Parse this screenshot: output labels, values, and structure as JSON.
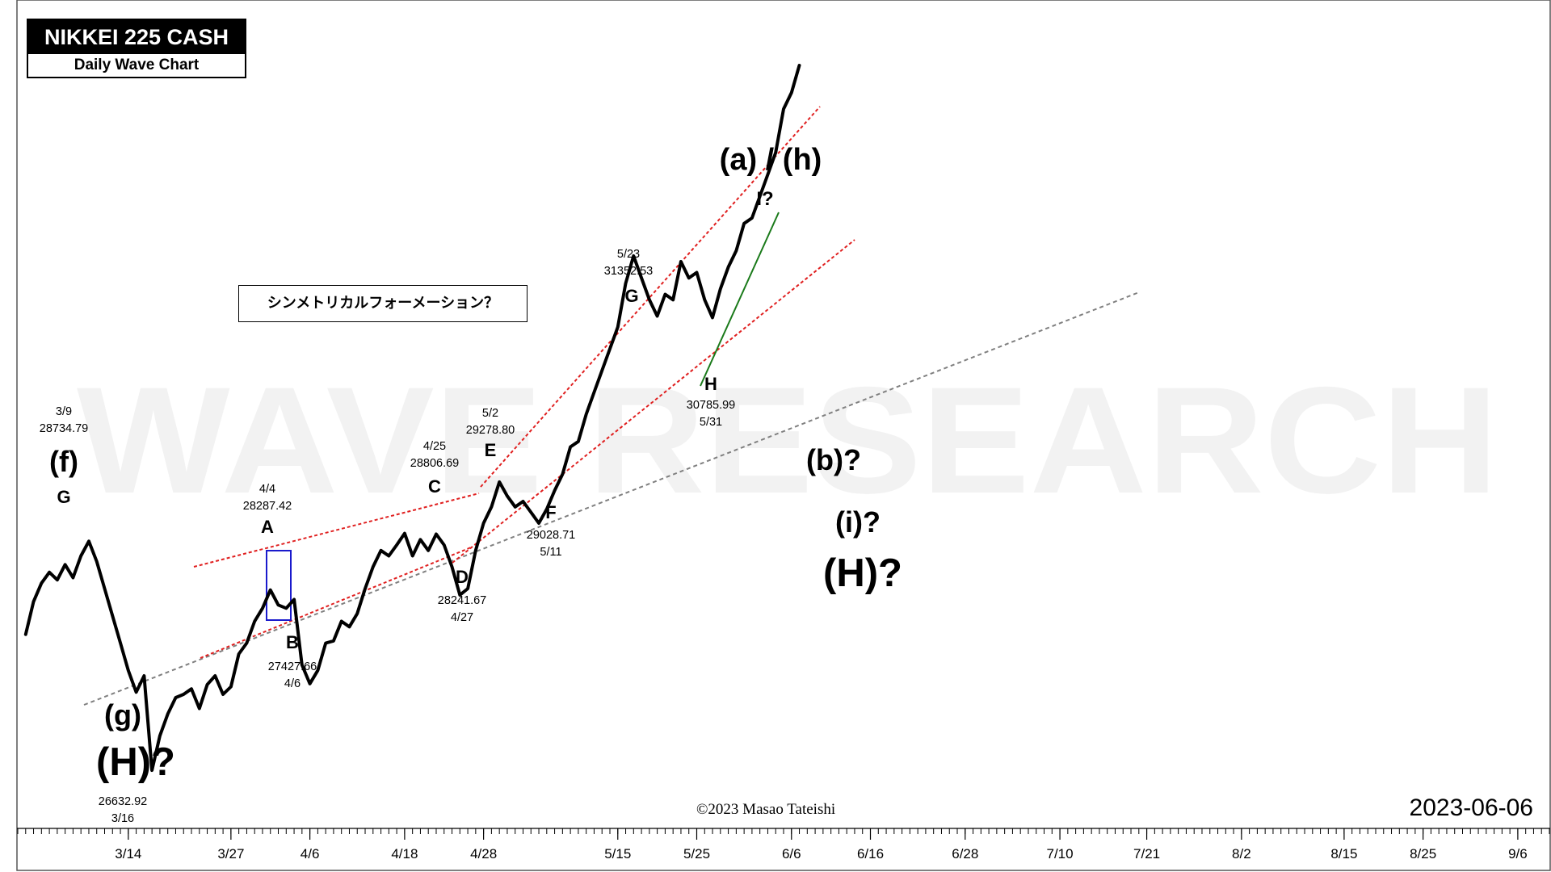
{
  "header": {
    "title": "NIKKEI 225 CASH",
    "subtitle": "Daily Wave Chart"
  },
  "note": "シンメトリカルフォーメーション？",
  "watermark": "WAVE RESEARCH",
  "copyright": "©2023 Masao Tateishi",
  "date_stamp": "2023-06-06",
  "colors": {
    "price_line": "#000000",
    "channel": "#e02020",
    "support": "#808080",
    "green_line": "#1a7a1a",
    "box": "#1a1acc",
    "watermark": "#f2f2f2"
  },
  "chart_data": {
    "type": "line",
    "x_tick_labels": [
      "3/14",
      "3/27",
      "4/6",
      "4/18",
      "4/28",
      "5/15",
      "5/25",
      "6/6",
      "6/16",
      "6/28",
      "7/10",
      "7/21",
      "8/2",
      "8/15",
      "8/25",
      "9/6"
    ],
    "x_tick_days": [
      14,
      27,
      37,
      49,
      59,
      76,
      86,
      98,
      108,
      120,
      132,
      143,
      155,
      168,
      178,
      190
    ],
    "series": [
      {
        "x": [
          1,
          2,
          3,
          4,
          5,
          6,
          7,
          8,
          9,
          10,
          11,
          12,
          13,
          14,
          15,
          16,
          17,
          18,
          19,
          20,
          21,
          22,
          23,
          24,
          25,
          26,
          27,
          28,
          29,
          30,
          31,
          32,
          33,
          34,
          35,
          36,
          37,
          38,
          39,
          40,
          41,
          42,
          43,
          44,
          45,
          46,
          47,
          48,
          49,
          50,
          51,
          52,
          53,
          54,
          55,
          56,
          57,
          58,
          59,
          60,
          61,
          62,
          63,
          64,
          65,
          66,
          67,
          68,
          69,
          70,
          71,
          72,
          73,
          74,
          75,
          76,
          77,
          78,
          79,
          80,
          81,
          82,
          83,
          84,
          85,
          86,
          87,
          88,
          89,
          90,
          91,
          92,
          93,
          94,
          95,
          96,
          97,
          98,
          99
        ],
        "y": [
          27880,
          28180,
          28350,
          28450,
          28380,
          28520,
          28400,
          28600,
          28734.79,
          28550,
          28300,
          28050,
          27800,
          27550,
          27350,
          27500,
          26632.92,
          26950,
          27150,
          27300,
          27330,
          27380,
          27200,
          27420,
          27500,
          27330,
          27400,
          27700,
          27800,
          28000,
          28120,
          28287.42,
          28150,
          28120,
          28200,
          27600,
          27427.66,
          27550,
          27800,
          27820,
          28000,
          27950,
          28070,
          28300,
          28500,
          28650,
          28600,
          28700,
          28806.69,
          28600,
          28750,
          28650,
          28800,
          28700,
          28500,
          28241.67,
          28300,
          28650,
          28900,
          29050,
          29278.8,
          29150,
          29050,
          29100,
          29000,
          28900,
          29028.71,
          29200,
          29350,
          29600,
          29650,
          29900,
          30100,
          30300,
          30500,
          30700,
          31100,
          31352.53,
          31150,
          30950,
          30800,
          31000,
          30950,
          31300,
          31150,
          31200,
          30950,
          30785.99,
          31050,
          31250,
          31400,
          31650,
          31700,
          31900,
          32100,
          32300,
          32700,
          32850,
          33100
        ]
      }
    ],
    "y_range": [
      26100,
      33700
    ],
    "x_range": [
      0,
      194
    ],
    "grid": false,
    "legend": "none",
    "price_labels": [
      {
        "id": "p39",
        "date": "3/9",
        "value": "28734.79"
      },
      {
        "id": "p316",
        "value": "26632.92",
        "date": "3/16"
      },
      {
        "id": "p44",
        "date": "4/4",
        "value": "28287.42"
      },
      {
        "id": "p46",
        "value": "27427.66",
        "date": "4/6"
      },
      {
        "id": "p425",
        "date": "4/25",
        "value": "28806.69"
      },
      {
        "id": "p427",
        "value": "28241.67",
        "date": "4/27"
      },
      {
        "id": "p52",
        "date": "5/2",
        "value": "29278.80"
      },
      {
        "id": "p511",
        "value": "29028.71",
        "date": "5/11"
      },
      {
        "id": "p523",
        "date": "5/23",
        "value": "31352.53"
      },
      {
        "id": "p531",
        "value": "30785.99",
        "date": "5/31"
      }
    ],
    "wave_labels": [
      {
        "id": "wG1",
        "text": "G"
      },
      {
        "id": "wf",
        "text": "(f)"
      },
      {
        "id": "wg",
        "text": "(g)"
      },
      {
        "id": "wH1",
        "text": "(H)?"
      },
      {
        "id": "wA",
        "text": "A"
      },
      {
        "id": "wB",
        "text": "B"
      },
      {
        "id": "wC",
        "text": "C"
      },
      {
        "id": "wD",
        "text": "D"
      },
      {
        "id": "wE",
        "text": "E"
      },
      {
        "id": "wF",
        "text": "F"
      },
      {
        "id": "wG2",
        "text": "G"
      },
      {
        "id": "wH",
        "text": "H"
      },
      {
        "id": "wI",
        "text": "I?"
      },
      {
        "id": "wah",
        "text": "(a) / (h)"
      },
      {
        "id": "wb",
        "text": "(b)?"
      },
      {
        "id": "wi",
        "text": "(i)?"
      },
      {
        "id": "wH2",
        "text": "(H)?"
      }
    ]
  }
}
